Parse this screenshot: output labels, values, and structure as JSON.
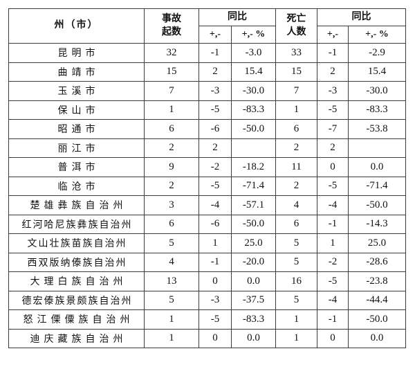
{
  "colors": {
    "background": "#ffffff",
    "border": "#3a3a3a",
    "text": "#111111"
  },
  "table": {
    "headers": {
      "region": "州（市）",
      "accidents_line1": "事故",
      "accidents_line2": "起数",
      "yoy": "同比",
      "deaths_line1": "死亡",
      "deaths_line2": "人数",
      "sub_delta": "+,-",
      "sub_pct": "+,- %"
    },
    "rows": [
      {
        "region": "昆明市",
        "accidents": "32",
        "acc_delta": "-1",
        "acc_pct": "-3.0",
        "deaths": "33",
        "death_delta": "-1",
        "death_pct": "-2.9"
      },
      {
        "region": "曲靖市",
        "accidents": "15",
        "acc_delta": "2",
        "acc_pct": "15.4",
        "deaths": "15",
        "death_delta": "2",
        "death_pct": "15.4"
      },
      {
        "region": "玉溪市",
        "accidents": "7",
        "acc_delta": "-3",
        "acc_pct": "-30.0",
        "deaths": "7",
        "death_delta": "-3",
        "death_pct": "-30.0"
      },
      {
        "region": "保山市",
        "accidents": "1",
        "acc_delta": "-5",
        "acc_pct": "-83.3",
        "deaths": "1",
        "death_delta": "-5",
        "death_pct": "-83.3"
      },
      {
        "region": "昭通市",
        "accidents": "6",
        "acc_delta": "-6",
        "acc_pct": "-50.0",
        "deaths": "6",
        "death_delta": "-7",
        "death_pct": "-53.8"
      },
      {
        "region": "丽江市",
        "accidents": "2",
        "acc_delta": "2",
        "acc_pct": "",
        "deaths": "2",
        "death_delta": "2",
        "death_pct": ""
      },
      {
        "region": "普洱市",
        "accidents": "9",
        "acc_delta": "-2",
        "acc_pct": "-18.2",
        "deaths": "11",
        "death_delta": "0",
        "death_pct": "0.0"
      },
      {
        "region": "临沧市",
        "accidents": "2",
        "acc_delta": "-5",
        "acc_pct": "-71.4",
        "deaths": "2",
        "death_delta": "-5",
        "death_pct": "-71.4"
      },
      {
        "region": "楚雄彝族自治州",
        "accidents": "3",
        "acc_delta": "-4",
        "acc_pct": "-57.1",
        "deaths": "4",
        "death_delta": "-4",
        "death_pct": "-50.0"
      },
      {
        "region": "红河哈尼族彝族自治州",
        "accidents": "6",
        "acc_delta": "-6",
        "acc_pct": "-50.0",
        "deaths": "6",
        "death_delta": "-1",
        "death_pct": "-14.3"
      },
      {
        "region": "文山壮族苗族自治州",
        "accidents": "5",
        "acc_delta": "1",
        "acc_pct": "25.0",
        "deaths": "5",
        "death_delta": "1",
        "death_pct": "25.0"
      },
      {
        "region": "西双版纳傣族自治州",
        "accidents": "4",
        "acc_delta": "-1",
        "acc_pct": "-20.0",
        "deaths": "5",
        "death_delta": "-2",
        "death_pct": "-28.6"
      },
      {
        "region": "大理白族自治州",
        "accidents": "13",
        "acc_delta": "0",
        "acc_pct": "0.0",
        "deaths": "16",
        "death_delta": "-5",
        "death_pct": "-23.8"
      },
      {
        "region": "德宏傣族景颇族自治州",
        "accidents": "5",
        "acc_delta": "-3",
        "acc_pct": "-37.5",
        "deaths": "5",
        "death_delta": "-4",
        "death_pct": "-44.4"
      },
      {
        "region": "怒江傈僳族自治州",
        "accidents": "1",
        "acc_delta": "-5",
        "acc_pct": "-83.3",
        "deaths": "1",
        "death_delta": "-1",
        "death_pct": "-50.0"
      },
      {
        "region": "迪庆藏族自治州",
        "accidents": "1",
        "acc_delta": "0",
        "acc_pct": "0.0",
        "deaths": "1",
        "death_delta": "0",
        "death_pct": "0.0"
      }
    ]
  }
}
